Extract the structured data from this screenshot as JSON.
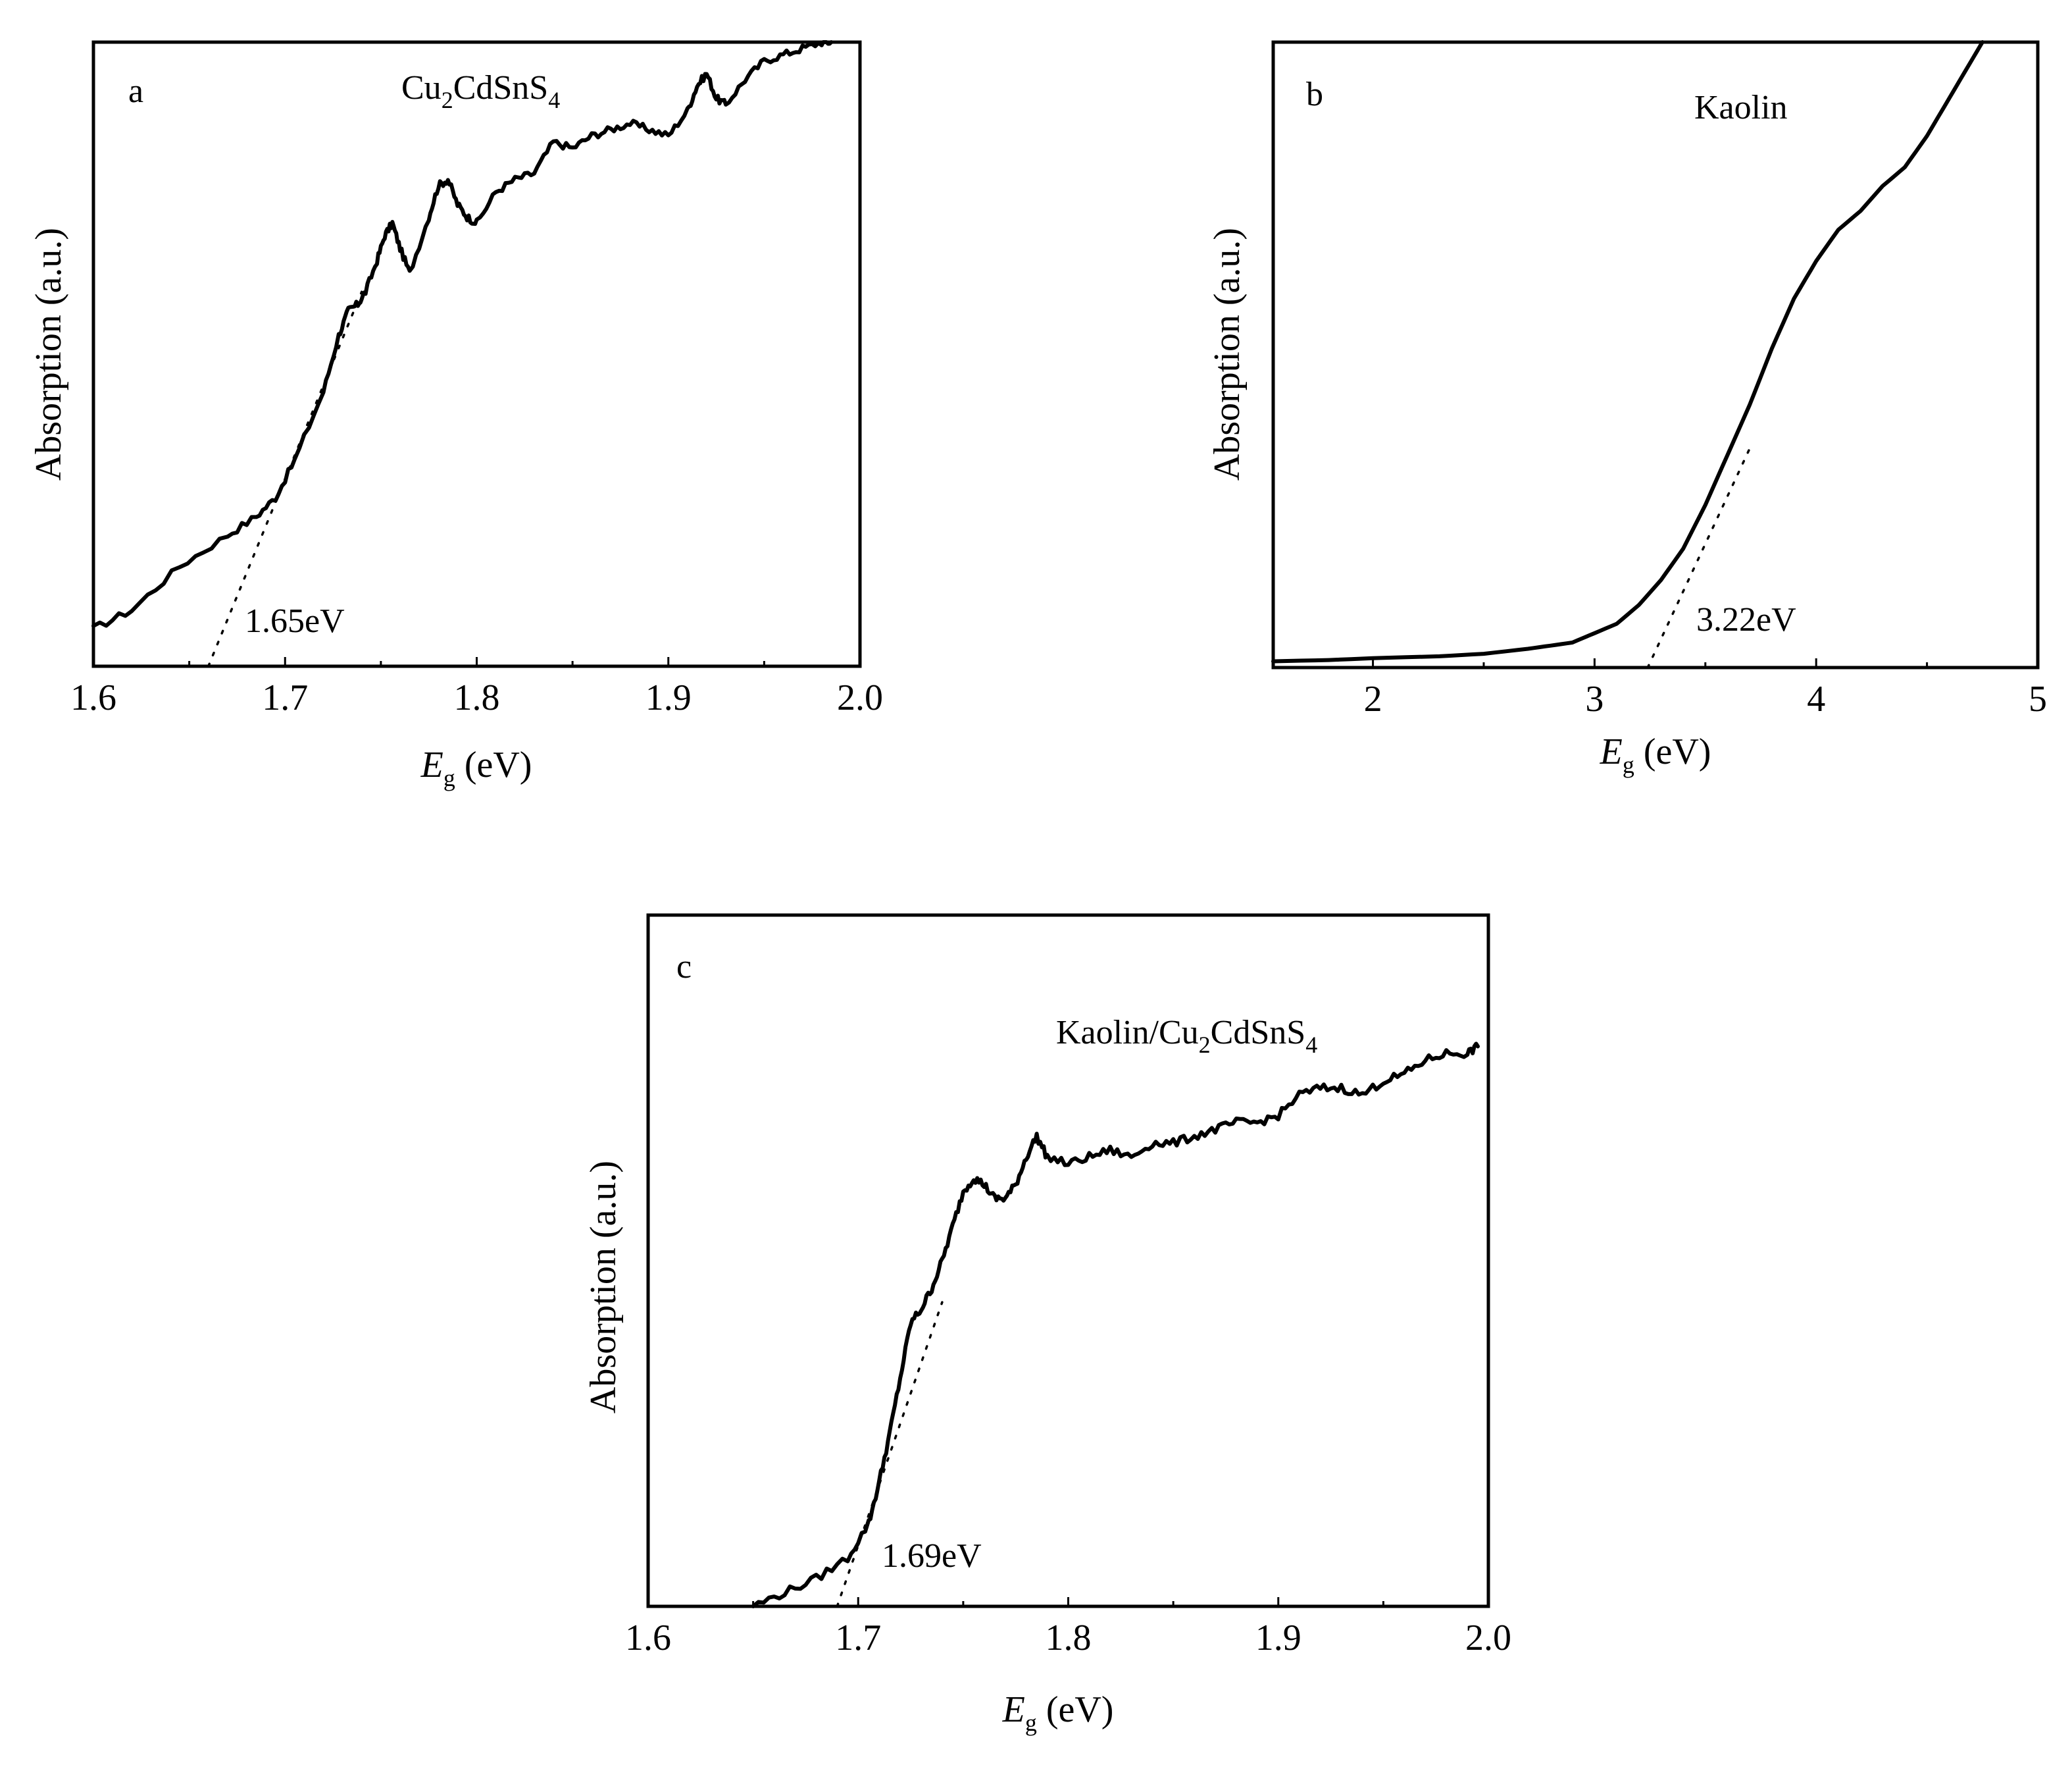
{
  "chart_data": [
    {
      "type": "line",
      "panel": "a",
      "sample_label": {
        "main": "Cu",
        "s1": "2",
        "mid": "CdSnS",
        "s2": "4"
      },
      "xlabel": {
        "main": "E",
        "sub": "g",
        "unit": " (eV)"
      },
      "ylabel": "Absorption (a.u.)",
      "xlim": [
        1.6,
        2.0
      ],
      "ylim": [
        0,
        1
      ],
      "xticks": [
        1.6,
        1.7,
        1.8,
        1.9,
        2.0
      ],
      "xtick_labels": [
        "1.6",
        "1.7",
        "1.8",
        "1.9",
        "2.0"
      ],
      "annotation": {
        "text": "1.65eV",
        "x": 1.66
      },
      "tangent": [
        [
          1.66,
          0.0
        ],
        [
          1.74,
          0.6
        ]
      ],
      "series": [
        {
          "name": "Cu2CdSnS4",
          "x": [
            1.6,
            1.62,
            1.645,
            1.67,
            1.685,
            1.695,
            1.705,
            1.72,
            1.728,
            1.733,
            1.738,
            1.742,
            1.748,
            1.752,
            1.756,
            1.76,
            1.765,
            1.775,
            1.78,
            1.785,
            1.79,
            1.795,
            1.8,
            1.81,
            1.82,
            1.83,
            1.84,
            1.85,
            1.86,
            1.87,
            1.88,
            1.89,
            1.9,
            1.91,
            1.915,
            1.92,
            1.925,
            1.93,
            1.94,
            1.95,
            1.96,
            1.97,
            1.98,
            1.985
          ],
          "y": [
            0.06,
            0.09,
            0.16,
            0.21,
            0.24,
            0.27,
            0.33,
            0.44,
            0.53,
            0.57,
            0.58,
            0.6,
            0.65,
            0.69,
            0.71,
            0.67,
            0.63,
            0.72,
            0.77,
            0.78,
            0.74,
            0.72,
            0.71,
            0.76,
            0.78,
            0.79,
            0.84,
            0.83,
            0.85,
            0.86,
            0.87,
            0.86,
            0.85,
            0.89,
            0.93,
            0.95,
            0.91,
            0.9,
            0.94,
            0.97,
            0.98,
            0.99,
            1.0,
            1.0
          ]
        }
      ]
    },
    {
      "type": "line",
      "panel": "b",
      "sample_label": {
        "main": "Kaolin"
      },
      "xlabel": {
        "main": "E",
        "sub": "g",
        "unit": " (eV)"
      },
      "ylabel": "Absorption (a.u.)",
      "xlim": [
        1.55,
        5.0
      ],
      "ylim": [
        0,
        1
      ],
      "xticks": [
        2,
        3,
        4,
        5
      ],
      "xtick_labels": [
        "2",
        "3",
        "4",
        "5"
      ],
      "annotation": {
        "text": "3.22eV",
        "x": 3.24
      },
      "tangent": [
        [
          3.24,
          0.0
        ],
        [
          3.7,
          0.35
        ]
      ],
      "series": [
        {
          "name": "Kaolin",
          "x": [
            1.55,
            1.8,
            2.0,
            2.3,
            2.5,
            2.7,
            2.8,
            2.9,
            3.0,
            3.1,
            3.2,
            3.3,
            3.4,
            3.5,
            3.6,
            3.7,
            3.8,
            3.9,
            4.0,
            4.1,
            4.2,
            4.3,
            4.4,
            4.5,
            4.6,
            4.7,
            4.75
          ],
          "y": [
            0.01,
            0.012,
            0.015,
            0.018,
            0.022,
            0.03,
            0.035,
            0.04,
            0.055,
            0.07,
            0.1,
            0.14,
            0.19,
            0.26,
            0.34,
            0.42,
            0.51,
            0.59,
            0.65,
            0.7,
            0.73,
            0.77,
            0.8,
            0.85,
            0.91,
            0.97,
            1.0
          ]
        }
      ]
    },
    {
      "type": "line",
      "panel": "c",
      "sample_label": {
        "main": "Kaolin/Cu",
        "s1": "2",
        "mid": "CdSnS",
        "s2": "4"
      },
      "xlabel": {
        "main": "E",
        "sub": "g",
        "unit": " (eV)"
      },
      "ylabel": "Absorption (a.u.)",
      "xlim": [
        1.6,
        2.0
      ],
      "ylim": [
        0,
        1
      ],
      "xticks": [
        1.6,
        1.7,
        1.8,
        1.9,
        2.0
      ],
      "xtick_labels": [
        "1.6",
        "1.7",
        "1.8",
        "1.9",
        "2.0"
      ],
      "annotation": {
        "text": "1.69eV",
        "x": 1.69
      },
      "tangent": [
        [
          1.69,
          0.0
        ],
        [
          1.74,
          0.44
        ]
      ],
      "series": [
        {
          "name": "Kaolin/Cu2CdSnS4",
          "x": [
            1.65,
            1.665,
            1.68,
            1.695,
            1.705,
            1.71,
            1.715,
            1.72,
            1.725,
            1.73,
            1.735,
            1.74,
            1.745,
            1.75,
            1.755,
            1.76,
            1.765,
            1.77,
            1.775,
            1.78,
            1.785,
            1.79,
            1.8,
            1.81,
            1.82,
            1.83,
            1.84,
            1.85,
            1.86,
            1.87,
            1.88,
            1.89,
            1.9,
            1.91,
            1.92,
            1.93,
            1.94,
            1.95,
            1.96,
            1.97,
            1.98,
            1.99,
            1.995
          ],
          "y": [
            0.0,
            0.02,
            0.04,
            0.07,
            0.12,
            0.18,
            0.25,
            0.33,
            0.41,
            0.43,
            0.46,
            0.5,
            0.55,
            0.6,
            0.62,
            0.61,
            0.59,
            0.59,
            0.61,
            0.65,
            0.68,
            0.65,
            0.64,
            0.65,
            0.66,
            0.65,
            0.67,
            0.67,
            0.68,
            0.69,
            0.7,
            0.7,
            0.71,
            0.74,
            0.75,
            0.75,
            0.74,
            0.76,
            0.77,
            0.79,
            0.8,
            0.8,
            0.81
          ]
        }
      ]
    }
  ]
}
